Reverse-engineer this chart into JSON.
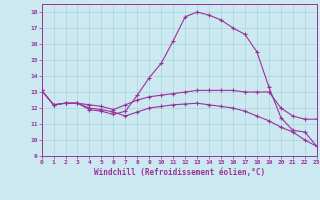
{
  "xlabel": "Windchill (Refroidissement éolien,°C)",
  "background_color": "#cce8f0",
  "grid_color": "#aad4e0",
  "line_color": "#993399",
  "xlim": [
    0,
    23
  ],
  "ylim": [
    9,
    18.5
  ],
  "yticks": [
    9,
    10,
    11,
    12,
    13,
    14,
    15,
    16,
    17,
    18
  ],
  "xticks": [
    0,
    1,
    2,
    3,
    4,
    5,
    6,
    7,
    8,
    9,
    10,
    11,
    12,
    13,
    14,
    15,
    16,
    17,
    18,
    19,
    20,
    21,
    22,
    23
  ],
  "line1_x": [
    0,
    1,
    2,
    3,
    4,
    5,
    6,
    7,
    8,
    9,
    10,
    11,
    12,
    13,
    14,
    15,
    16,
    17,
    18,
    19,
    20,
    21,
    22,
    23
  ],
  "line1_y": [
    13.1,
    12.2,
    12.3,
    12.3,
    11.9,
    11.8,
    11.6,
    11.8,
    12.8,
    13.9,
    14.8,
    16.2,
    17.7,
    18.0,
    17.8,
    17.5,
    17.0,
    16.6,
    15.5,
    13.3,
    11.4,
    10.6,
    10.5,
    9.6
  ],
  "line2_x": [
    0,
    1,
    2,
    3,
    4,
    5,
    6,
    7,
    8,
    9,
    10,
    11,
    12,
    13,
    14,
    15,
    16,
    17,
    18,
    19,
    20,
    21,
    22,
    23
  ],
  "line2_y": [
    13.1,
    12.2,
    12.3,
    12.3,
    12.2,
    12.1,
    11.9,
    12.2,
    12.5,
    12.7,
    12.8,
    12.9,
    13.0,
    13.1,
    13.1,
    13.1,
    13.1,
    13.0,
    13.0,
    13.0,
    12.0,
    11.5,
    11.3,
    11.3
  ],
  "line3_x": [
    0,
    1,
    2,
    3,
    4,
    5,
    6,
    7,
    8,
    9,
    10,
    11,
    12,
    13,
    14,
    15,
    16,
    17,
    18,
    19,
    20,
    21,
    22,
    23
  ],
  "line3_y": [
    13.1,
    12.2,
    12.3,
    12.3,
    12.0,
    11.9,
    11.75,
    11.5,
    11.75,
    12.0,
    12.1,
    12.2,
    12.25,
    12.3,
    12.2,
    12.1,
    12.0,
    11.8,
    11.5,
    11.2,
    10.8,
    10.5,
    10.0,
    9.6
  ]
}
